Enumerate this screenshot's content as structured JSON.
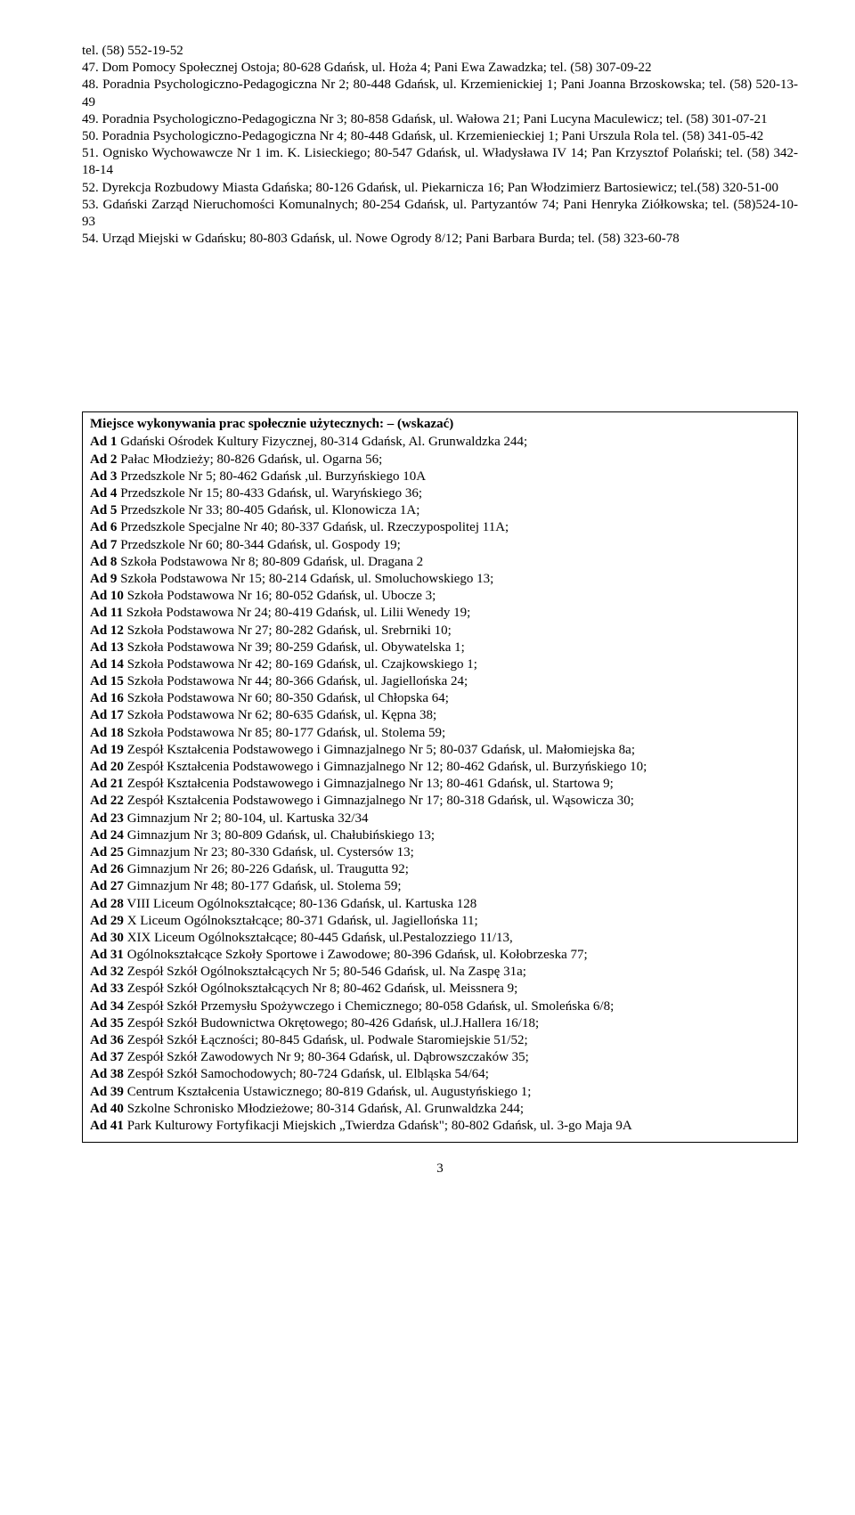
{
  "numberedItems": [
    {
      "pre": "tel. (58) 552-19-52",
      "n": "47.",
      "text": "Dom Pomocy Społecznej Ostoja; 80-628 Gdańsk, ul. Hoża 4; Pani Ewa Zawadzka; tel. (58) 307-09-22"
    },
    {
      "n": "48.",
      "text": "Poradnia Psychologiczno-Pedagogiczna Nr 2; 80-448 Gdańsk, ul. Krzemienickiej 1; Pani Joanna Brzoskowska; tel. (58) 520-13-49"
    },
    {
      "n": "49.",
      "text": "Poradnia Psychologiczno-Pedagogiczna Nr 3; 80-858 Gdańsk, ul. Wałowa 21; Pani Lucyna Maculewicz; tel. (58) 301-07-21"
    },
    {
      "n": "50.",
      "text": "Poradnia Psychologiczno-Pedagogiczna Nr 4; 80-448 Gdańsk, ul. Krzemienieckiej 1; Pani Urszula Rola tel. (58) 341-05-42"
    },
    {
      "n": "51.",
      "text": "Ognisko Wychowawcze Nr 1 im. K. Lisieckiego; 80-547 Gdańsk, ul. Władysława IV 14; Pan Krzysztof Polański; tel. (58) 342-18-14"
    },
    {
      "n": "52.",
      "text": "Dyrekcja Rozbudowy Miasta Gdańska; 80-126 Gdańsk, ul. Piekarnicza 16; Pan Włodzimierz Bartosiewicz; tel.(58) 320-51-00"
    },
    {
      "n": "53.",
      "text": "Gdański Zarząd Nieruchomości Komunalnych; 80-254 Gdańsk, ul. Partyzantów 74; Pani Henryka Ziółkowska; tel. (58)524-10-93"
    },
    {
      "n": "54.",
      "text": "Urząd Miejski w Gdańsku; 80-803 Gdańsk, ul. Nowe Ogrody 8/12; Pani Barbara Burda; tel. (58) 323-60-78"
    }
  ],
  "boxTitle": "Miejsce wykonywania prac społecznie użytecznych: – (wskazać)",
  "ads": [
    {
      "label": "Ad 1",
      "text": "  Gdański Ośrodek Kultury Fizycznej, 80-314 Gdańsk, Al. Grunwaldzka 244;"
    },
    {
      "label": "Ad 2",
      "text": "  Pałac Młodzieży; 80-826 Gdańsk, ul. Ogarna 56;"
    },
    {
      "label": "Ad 3",
      "text": " Przedszkole Nr 5; 80-462 Gdańsk ,ul. Burzyńskiego 10A"
    },
    {
      "label": "Ad 4",
      "text": "  Przedszkole Nr 15; 80-433 Gdańsk, ul. Waryńskiego 36;"
    },
    {
      "label": "Ad 5",
      "text": "  Przedszkole Nr 33; 80-405 Gdańsk, ul. Klonowicza 1A;"
    },
    {
      "label": "Ad 6",
      "text": " Przedszkole Specjalne Nr  40; 80-337 Gdańsk, ul. Rzeczypospolitej 11A;"
    },
    {
      "label": "Ad 7",
      "text": "  Przedszkole Nr 60; 80-344 Gdańsk, ul. Gospody 19;"
    },
    {
      "label": "Ad 8",
      "text": "  Szkoła Podstawowa Nr 8; 80-809 Gdańsk, ul. Dragana 2"
    },
    {
      "label": "Ad 9",
      "text": " Szkoła Podstawowa Nr 15; 80-214 Gdańsk, ul. Smoluchowskiego 13;"
    },
    {
      "label": "Ad 10",
      "text": " Szkoła Podstawowa Nr 16; 80-052 Gdańsk, ul. Ubocze 3;"
    },
    {
      "label": "Ad 11",
      "text": " Szkoła Podstawowa Nr 24; 80-419 Gdańsk, ul. Lilii Wenedy 19;"
    },
    {
      "label": "Ad 12",
      "text": " Szkoła Podstawowa Nr 27; 80-282 Gdańsk, ul. Srebrniki 10;"
    },
    {
      "label": "Ad 13",
      "text": " Szkoła Podstawowa Nr  39; 80-259 Gdańsk, ul. Obywatelska 1;"
    },
    {
      "label": "Ad 14",
      "text": " Szkoła Podstawowa Nr  42; 80-169 Gdańsk, ul. Czajkowskiego 1;"
    },
    {
      "label": "Ad 15",
      "text": " Szkoła Podstawowa Nr 44; 80-366 Gdańsk, ul. Jagiellońska 24;"
    },
    {
      "label": "Ad 16",
      "text": " Szkoła Podstawowa Nr 60; 80-350 Gdańsk, ul Chłopska 64;"
    },
    {
      "label": "Ad 17",
      "text": " Szkoła Podstawowa Nr 62; 80-635 Gdańsk, ul. Kępna 38;"
    },
    {
      "label": "Ad 18",
      "text": " Szkoła Podstawowa Nr 85; 80-177 Gdańsk, ul. Stolema 59;"
    },
    {
      "label": "Ad 19",
      "text": " Zespół Kształcenia Podstawowego i Gimnazjalnego Nr 5; 80-037 Gdańsk, ul. Małomiejska 8a;"
    },
    {
      "label": "Ad 20",
      "text": " Zespół Kształcenia Podstawowego i Gimnazjalnego Nr 12; 80-462 Gdańsk, ul. Burzyńskiego 10;"
    },
    {
      "label": "Ad 21",
      "text": " Zespół Kształcenia Podstawowego i Gimnazjalnego Nr 13; 80-461 Gdańsk, ul. Startowa 9;"
    },
    {
      "label": "Ad 22",
      "text": " Zespół Kształcenia Podstawowego i Gimnazjalnego Nr 17; 80-318 Gdańsk, ul. Wąsowicza 30;"
    },
    {
      "label": "Ad 23",
      "text": " Gimnazjum Nr 2; 80-104, ul. Kartuska 32/34"
    },
    {
      "label": "Ad 24",
      "text": " Gimnazjum Nr 3; 80-809 Gdańsk, ul. Chałubińskiego 13;"
    },
    {
      "label": "Ad 25",
      "text": " Gimnazjum Nr 23; 80-330 Gdańsk, ul. Cystersów 13;"
    },
    {
      "label": "Ad 26",
      "text": " Gimnazjum Nr 26; 80-226 Gdańsk, ul. Traugutta 92;"
    },
    {
      "label": "Ad 27",
      "text": " Gimnazjum Nr 48; 80-177 Gdańsk, ul. Stolema 59;"
    },
    {
      "label": "Ad 28",
      "text": " VIII Liceum Ogólnokształcące; 80-136 Gdańsk, ul. Kartuska 128"
    },
    {
      "label": "Ad 29",
      "text": " X Liceum Ogólnokształcące; 80-371 Gdańsk, ul. Jagiellońska 11;"
    },
    {
      "label": "Ad 30",
      "text": " XIX Liceum Ogólnokształcące; 80-445 Gdańsk, ul.Pestalozziego 11/13,"
    },
    {
      "label": "Ad 31",
      "text": " Ogólnokształcące Szkoły Sportowe i Zawodowe; 80-396 Gdańsk, ul. Kołobrzeska 77;"
    },
    {
      "label": "Ad 32",
      "text": " Zespół Szkół Ogólnokształcących Nr 5; 80-546 Gdańsk, ul. Na Zaspę 31a;"
    },
    {
      "label": "Ad 33",
      "text": " Zespół Szkół Ogólnokształcących Nr 8; 80-462 Gdańsk, ul. Meissnera 9;"
    },
    {
      "label": "Ad 34",
      "text": " Zespół Szkół Przemysłu Spożywczego i Chemicznego; 80-058 Gdańsk, ul. Smoleńska 6/8;"
    },
    {
      "label": "Ad 35",
      "text": " Zespół Szkół Budownictwa Okrętowego; 80-426 Gdańsk, ul.J.Hallera 16/18;"
    },
    {
      "label": "Ad 36",
      "text": " Zespół Szkół Łączności; 80-845 Gdańsk, ul. Podwale Staromiejskie 51/52;"
    },
    {
      "label": "Ad 37",
      "text": " Zespół Szkół Zawodowych Nr 9; 80-364 Gdańsk, ul. Dąbrowszczaków 35;"
    },
    {
      "label": "Ad 38",
      "text": " Zespół Szkół Samochodowych; 80-724 Gdańsk, ul. Elbląska 54/64;"
    },
    {
      "label": "Ad 39",
      "text": " Centrum Kształcenia Ustawicznego; 80-819 Gdańsk, ul. Augustyńskiego 1;"
    },
    {
      "label": "Ad 40",
      "text": " Szkolne Schronisko Młodzieżowe; 80-314 Gdańsk, Al. Grunwaldzka 244;"
    },
    {
      "label": "Ad 41",
      "text": " Park Kulturowy Fortyfikacji Miejskich „Twierdza Gdańsk\"; 80-802 Gdańsk, ul. 3-go Maja 9A"
    }
  ],
  "pageNumber": "3"
}
